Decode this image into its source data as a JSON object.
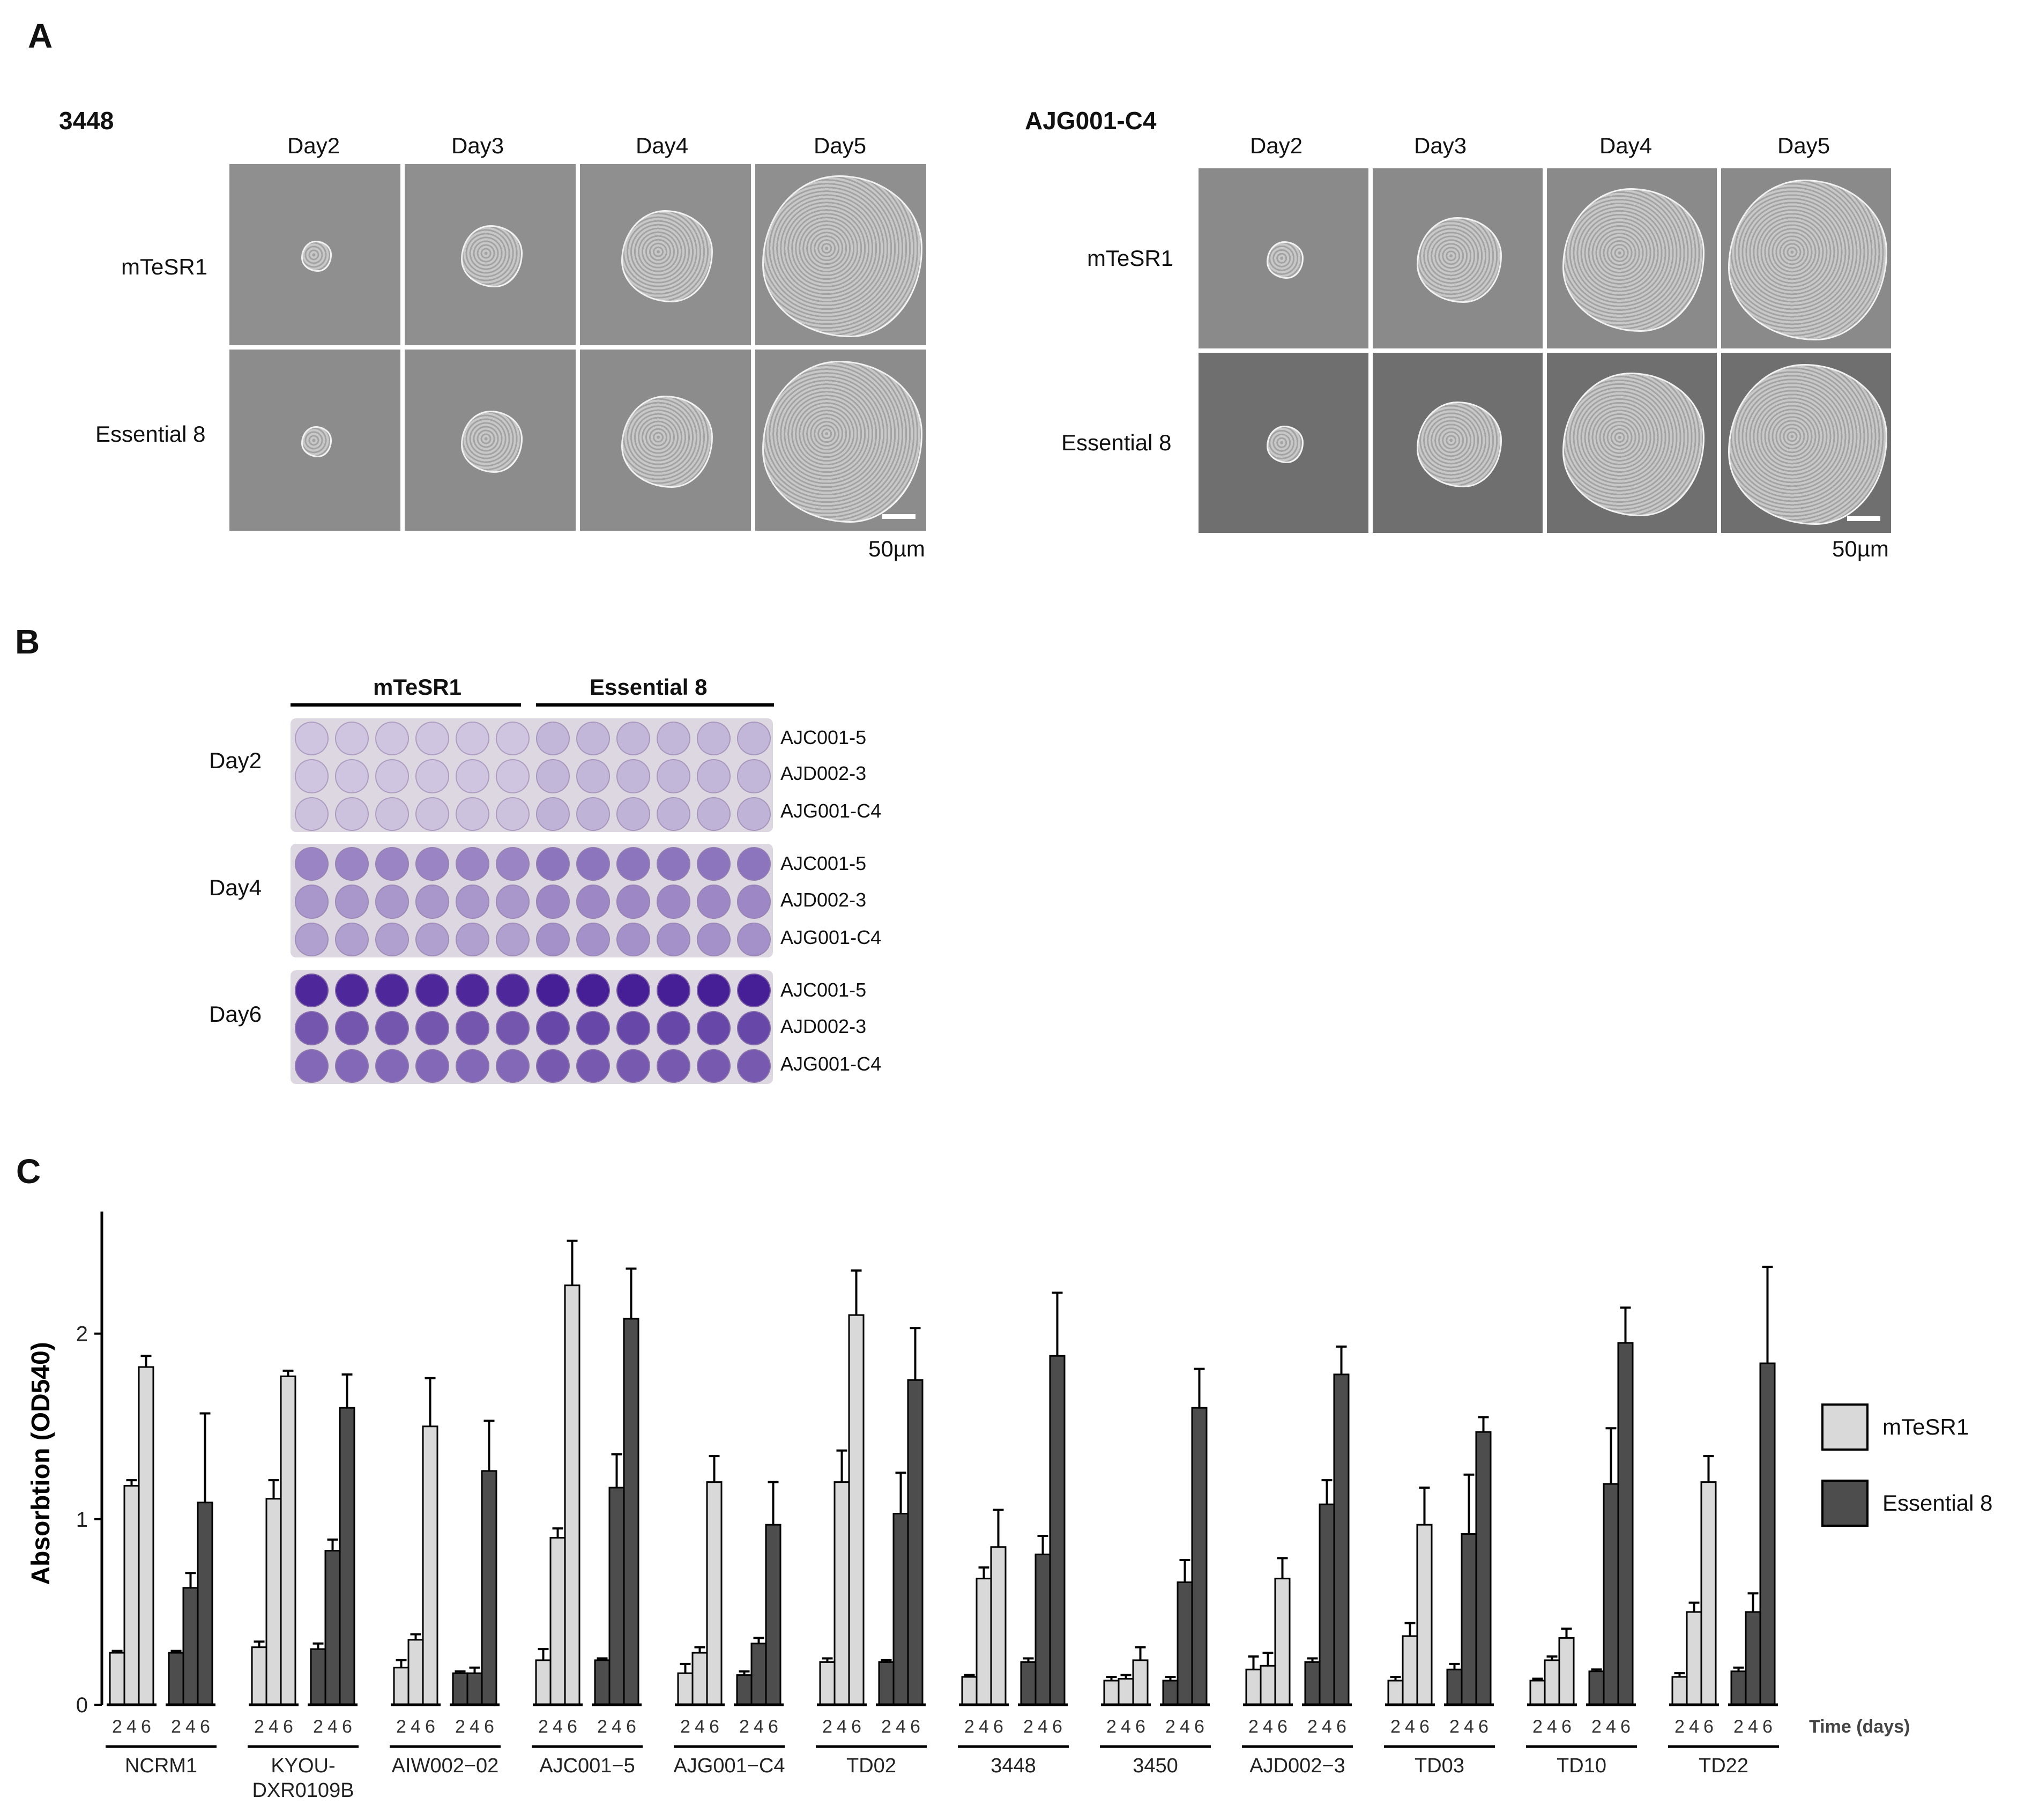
{
  "panelA": {
    "letter": "A",
    "scale_label": "50µm",
    "groups": [
      {
        "name": "3448",
        "days": [
          "Day2",
          "Day3",
          "Day4",
          "Day5"
        ],
        "rows": [
          "mTeSR1",
          "Essential 8"
        ]
      },
      {
        "name": "AJG001-C4",
        "days": [
          "Day2",
          "Day3",
          "Day4",
          "Day5"
        ],
        "rows": [
          "mTeSR1",
          "Essential 8"
        ]
      }
    ]
  },
  "panelB": {
    "letter": "B",
    "media": [
      "mTeSR1",
      "Essential 8"
    ],
    "days": [
      "Day2",
      "Day4",
      "Day6"
    ],
    "lines": [
      "AJC001-5",
      "AJD002-3",
      "AJG001-C4"
    ],
    "well_density": [
      [
        0.1,
        0.1,
        0.12
      ],
      [
        0.45,
        0.35,
        0.3
      ],
      [
        0.95,
        0.7,
        0.6
      ]
    ]
  },
  "panelC": {
    "letter": "C"
  },
  "chart_data": {
    "type": "bar",
    "ylabel": "Absorbtion (OD540)",
    "xlabel": "Time (days)",
    "ylim": [
      0,
      2.6
    ],
    "yticks": [
      0,
      1,
      2
    ],
    "time_points": [
      "2",
      "4",
      "6"
    ],
    "legend": {
      "position": "right",
      "entries": [
        "mTeSR1",
        "Essential 8"
      ]
    },
    "colors": {
      "mTeSR1": "#d9d9d9",
      "Essential 8": "#4d4d4d"
    },
    "cell_lines": [
      {
        "name": "NCRM1",
        "mTeSR1": [
          0.28,
          1.18,
          1.82
        ],
        "mTeSR1_err": [
          0.01,
          0.03,
          0.06
        ],
        "Essential 8": [
          0.28,
          0.63,
          1.09
        ],
        "Essential 8_err": [
          0.01,
          0.08,
          0.48
        ]
      },
      {
        "name": "KYOU-\nDXR0109B",
        "mTeSR1": [
          0.31,
          1.11,
          1.77
        ],
        "mTeSR1_err": [
          0.03,
          0.1,
          0.03
        ],
        "Essential 8": [
          0.3,
          0.83,
          1.6
        ],
        "Essential 8_err": [
          0.03,
          0.06,
          0.18
        ]
      },
      {
        "name": "AIW002−02",
        "mTeSR1": [
          0.2,
          0.35,
          1.5
        ],
        "mTeSR1_err": [
          0.04,
          0.03,
          0.26
        ],
        "Essential 8": [
          0.17,
          0.17,
          1.26
        ],
        "Essential 8_err": [
          0.01,
          0.03,
          0.27
        ]
      },
      {
        "name": "AJC001−5",
        "mTeSR1": [
          0.24,
          0.9,
          2.26
        ],
        "mTeSR1_err": [
          0.06,
          0.05,
          0.24
        ],
        "Essential 8": [
          0.24,
          1.17,
          2.08
        ],
        "Essential 8_err": [
          0.01,
          0.18,
          0.27
        ]
      },
      {
        "name": "AJG001−C4",
        "mTeSR1": [
          0.17,
          0.28,
          1.2
        ],
        "mTeSR1_err": [
          0.05,
          0.03,
          0.14
        ],
        "Essential 8": [
          0.16,
          0.33,
          0.97
        ],
        "Essential 8_err": [
          0.02,
          0.03,
          0.23
        ]
      },
      {
        "name": "TD02",
        "mTeSR1": [
          0.23,
          1.2,
          2.1
        ],
        "mTeSR1_err": [
          0.02,
          0.17,
          0.24
        ],
        "Essential 8": [
          0.23,
          1.03,
          1.75
        ],
        "Essential 8_err": [
          0.01,
          0.22,
          0.28
        ]
      },
      {
        "name": "3448",
        "mTeSR1": [
          0.15,
          0.68,
          0.85
        ],
        "mTeSR1_err": [
          0.01,
          0.06,
          0.2
        ],
        "Essential 8": [
          0.23,
          0.81,
          1.88
        ],
        "Essential 8_err": [
          0.02,
          0.1,
          0.34
        ]
      },
      {
        "name": "3450",
        "mTeSR1": [
          0.13,
          0.14,
          0.24
        ],
        "mTeSR1_err": [
          0.02,
          0.02,
          0.07
        ],
        "Essential 8": [
          0.13,
          0.66,
          1.6
        ],
        "Essential 8_err": [
          0.02,
          0.12,
          0.21
        ]
      },
      {
        "name": "AJD002−3",
        "mTeSR1": [
          0.19,
          0.21,
          0.68
        ],
        "mTeSR1_err": [
          0.07,
          0.07,
          0.11
        ],
        "Essential 8": [
          0.23,
          1.08,
          1.78
        ],
        "Essential 8_err": [
          0.02,
          0.13,
          0.15
        ]
      },
      {
        "name": "TD03",
        "mTeSR1": [
          0.13,
          0.37,
          0.97
        ],
        "mTeSR1_err": [
          0.02,
          0.07,
          0.2
        ],
        "Essential 8": [
          0.19,
          0.92,
          1.47
        ],
        "Essential 8_err": [
          0.03,
          0.32,
          0.08
        ]
      },
      {
        "name": "TD10",
        "mTeSR1": [
          0.13,
          0.24,
          0.36
        ],
        "mTeSR1_err": [
          0.01,
          0.02,
          0.05
        ],
        "Essential 8": [
          0.18,
          1.19,
          1.95
        ],
        "Essential 8_err": [
          0.01,
          0.3,
          0.19
        ]
      },
      {
        "name": "TD22",
        "mTeSR1": [
          0.15,
          0.5,
          1.2
        ],
        "mTeSR1_err": [
          0.02,
          0.05,
          0.14
        ],
        "Essential 8": [
          0.18,
          0.5,
          1.84
        ],
        "Essential 8_err": [
          0.02,
          0.1,
          0.52
        ]
      }
    ]
  }
}
